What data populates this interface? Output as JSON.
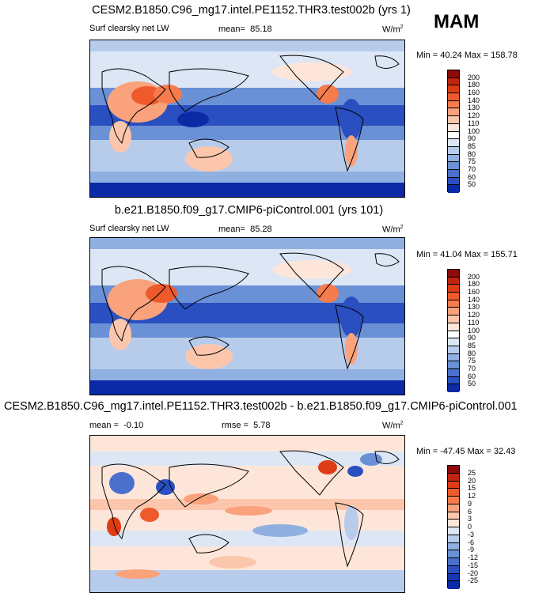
{
  "season": "MAM",
  "panels": [
    {
      "title": "CESM2.B1850.C96_mg17.intel.PE1152.THR3.test002b (yrs 1)",
      "left_label": "Surf clearsky net LW",
      "stat_label": "mean=",
      "stat_value": "85.18",
      "unit": "W/m",
      "unit_sup": "2",
      "minmax": "Min = 40.24 Max = 158.78",
      "colorbar_labels": [
        "200",
        "180",
        "160",
        "140",
        "130",
        "120",
        "110",
        "100",
        "90",
        "85",
        "80",
        "75",
        "70",
        "60",
        "50"
      ],
      "colorbar_colors": [
        "#8c0a0a",
        "#c0230e",
        "#de3c14",
        "#ef5a2c",
        "#f67b4d",
        "#f9a27c",
        "#fcc6ad",
        "#fde6d9",
        "#ffffff",
        "#dce6f5",
        "#b7cceb",
        "#8fb0e0",
        "#6a90d6",
        "#4a70cb",
        "#2a4fc0",
        "#0b2aa6"
      ]
    },
    {
      "title": "b.e21.B1850.f09_g17.CMIP6-piControl.001 (yrs 101)",
      "left_label": "Surf clearsky net LW",
      "stat_label": "mean=",
      "stat_value": "85.28",
      "unit": "W/m",
      "unit_sup": "2",
      "minmax": "Min = 41.04 Max = 155.71",
      "colorbar_labels": [
        "200",
        "180",
        "160",
        "140",
        "130",
        "120",
        "110",
        "100",
        "90",
        "85",
        "80",
        "75",
        "70",
        "60",
        "50"
      ],
      "colorbar_colors": [
        "#8c0a0a",
        "#c0230e",
        "#de3c14",
        "#ef5a2c",
        "#f67b4d",
        "#f9a27c",
        "#fcc6ad",
        "#fde6d9",
        "#ffffff",
        "#dce6f5",
        "#b7cceb",
        "#8fb0e0",
        "#6a90d6",
        "#4a70cb",
        "#2a4fc0",
        "#0b2aa6"
      ]
    },
    {
      "title": "CESM2.B1850.C96_mg17.intel.PE1152.THR3.test002b - b.e21.B1850.f09_g17.CMIP6-piControl.001",
      "mean_label": "mean =",
      "mean_value": "-0.10",
      "rmse_label": "rmse =",
      "rmse_value": "5.78",
      "unit": "W/m",
      "unit_sup": "2",
      "minmax": "Min = -47.45 Max = 32.43",
      "colorbar_labels": [
        "25",
        "20",
        "15",
        "12",
        "9",
        "6",
        "3",
        "0",
        "-3",
        "-6",
        "-9",
        "-12",
        "-15",
        "-20",
        "-25"
      ],
      "colorbar_colors": [
        "#8c0a0a",
        "#c0230e",
        "#de3c14",
        "#ef5a2c",
        "#f67b4d",
        "#f9a27c",
        "#fcc6ad",
        "#fde6d9",
        "#dce6f5",
        "#b7cceb",
        "#8fb0e0",
        "#6a90d6",
        "#4a70cb",
        "#2a4fc0",
        "#1537b3",
        "#0b2aa6"
      ]
    }
  ],
  "chart_data": [
    {
      "type": "heatmap",
      "title": "CESM2.B1850.C96_mg17.intel.PE1152.THR3.test002b (yrs 1)",
      "variable": "Surf clearsky net LW",
      "units": "W/m2",
      "mean": 85.18,
      "min": 40.24,
      "max": 158.78,
      "levels": [
        50,
        60,
        70,
        75,
        80,
        85,
        90,
        100,
        110,
        120,
        130,
        140,
        160,
        180,
        200
      ]
    },
    {
      "type": "heatmap",
      "title": "b.e21.B1850.f09_g17.CMIP6-piControl.001 (yrs 101)",
      "variable": "Surf clearsky net LW",
      "units": "W/m2",
      "mean": 85.28,
      "min": 41.04,
      "max": 155.71,
      "levels": [
        50,
        60,
        70,
        75,
        80,
        85,
        90,
        100,
        110,
        120,
        130,
        140,
        160,
        180,
        200
      ]
    },
    {
      "type": "heatmap",
      "title": "CESM2.B1850.C96_mg17.intel.PE1152.THR3.test002b - b.e21.B1850.f09_g17.CMIP6-piControl.001",
      "units": "W/m2",
      "mean": -0.1,
      "rmse": 5.78,
      "min": -47.45,
      "max": 32.43,
      "levels": [
        -25,
        -20,
        -15,
        -12,
        -9,
        -6,
        -3,
        0,
        3,
        6,
        9,
        12,
        15,
        20,
        25
      ]
    }
  ]
}
